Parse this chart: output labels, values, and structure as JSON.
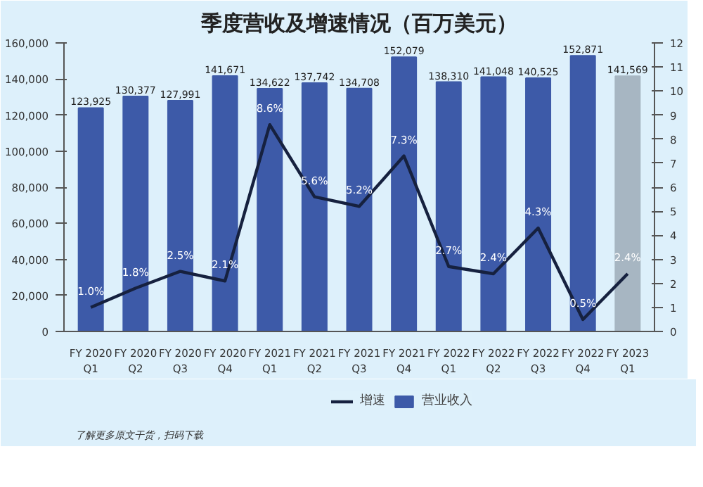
{
  "chart_data": {
    "type": "bar",
    "title": "季度营收及增速情况（百万美元）",
    "categories": [
      "FY 2020\nQ1",
      "FY 2020\nQ2",
      "FY 2020\nQ3",
      "FY 2020\nQ4",
      "FY 2021\nQ1",
      "FY 2021\nQ2",
      "FY 2021\nQ3",
      "FY 2021\nQ4",
      "FY 2022\nQ1",
      "FY 2022\nQ2",
      "FY 2022\nQ3",
      "FY 2022\nQ4",
      "FY 2023\nQ1"
    ],
    "series": [
      {
        "name": "营业收入",
        "type": "bar",
        "colors": [
          "#3d5aa8",
          "#3d5aa8",
          "#3d5aa8",
          "#3d5aa8",
          "#3d5aa8",
          "#3d5aa8",
          "#3d5aa8",
          "#3d5aa8",
          "#3d5aa8",
          "#3d5aa8",
          "#3d5aa8",
          "#3d5aa8",
          "#a7b6c2"
        ],
        "values": [
          123925,
          130377,
          127991,
          141671,
          134622,
          137742,
          134708,
          152079,
          138310,
          141048,
          140525,
          152871,
          141569
        ],
        "value_labels": [
          "123,925",
          "130,377",
          "127,991",
          "141,671",
          "134,622",
          "137,742",
          "134,708",
          "152,079",
          "138,310",
          "141,048",
          "140,525",
          "152,871",
          "141,569"
        ]
      },
      {
        "name": "增速",
        "type": "line",
        "axis": "y2",
        "color": "#16213f",
        "values": [
          1.0,
          1.8,
          2.5,
          2.1,
          8.6,
          5.6,
          5.2,
          7.3,
          2.7,
          2.4,
          4.3,
          0.5,
          2.4
        ],
        "value_labels": [
          "1.0%",
          "1.8%",
          "2.5%",
          "2.1%",
          "8.6%",
          "5.6%",
          "5.2%",
          "7.3%",
          "2.7%",
          "2.4%",
          "4.3%",
          "0.5%",
          "2.4%"
        ]
      }
    ],
    "ylim": [
      0,
      160000
    ],
    "yticks": [
      0,
      {
        "value": 20000,
        "label": "20,000"
      },
      {
        "value": 40000,
        "label": "40,000"
      },
      {
        "value": 60000,
        "label": "60,000"
      },
      {
        "value": 80000,
        "label": "80,000"
      },
      {
        "value": 100000,
        "label": "100,000"
      },
      {
        "value": 120000,
        "label": "120,000"
      },
      {
        "value": 140000,
        "label": "140,000"
      },
      {
        "value": 160000,
        "label": "160,000"
      }
    ],
    "y2lim": [
      0,
      12
    ],
    "y2ticks": [
      0,
      1,
      2,
      3,
      4,
      5,
      6,
      7,
      8,
      9,
      10,
      11,
      12
    ],
    "legend": "bottom",
    "grid": false,
    "annotations": [
      "了解更多原文干货，扫码下载"
    ]
  }
}
